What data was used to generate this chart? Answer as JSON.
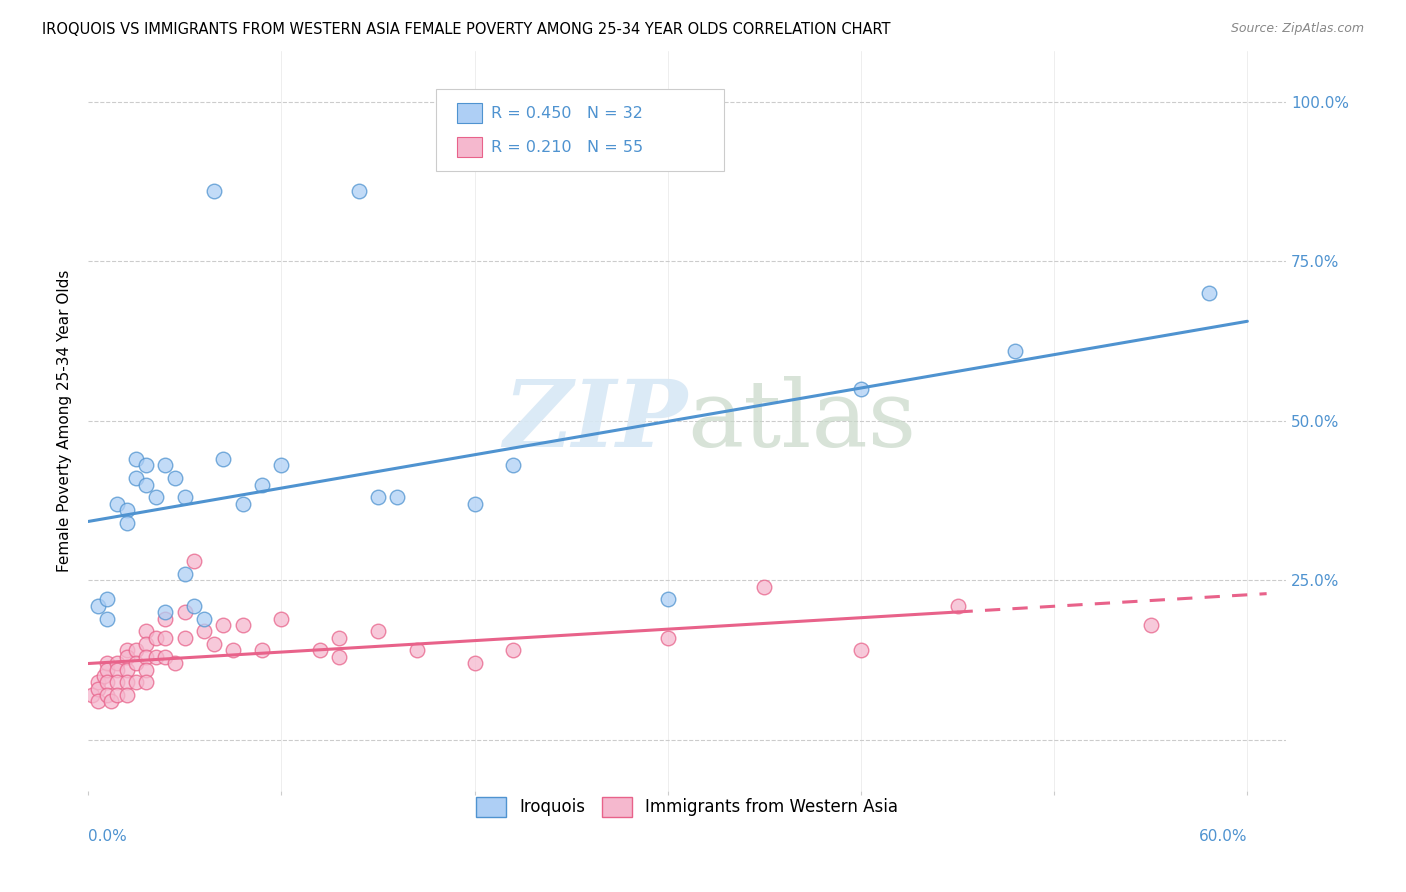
{
  "title": "IROQUOIS VS IMMIGRANTS FROM WESTERN ASIA FEMALE POVERTY AMONG 25-34 YEAR OLDS CORRELATION CHART",
  "source": "Source: ZipAtlas.com",
  "ylabel": "Female Poverty Among 25-34 Year Olds",
  "ytick_values": [
    0.0,
    0.25,
    0.5,
    0.75,
    1.0
  ],
  "ytick_labels": [
    "",
    "25.0%",
    "50.0%",
    "75.0%",
    "100.0%"
  ],
  "xlim": [
    0.0,
    0.62
  ],
  "ylim": [
    -0.08,
    1.08
  ],
  "legend1_label": "Iroquois",
  "legend2_label": "Immigrants from Western Asia",
  "R1": "0.450",
  "N1": "32",
  "R2": "0.210",
  "N2": "55",
  "color_blue": "#AECFF5",
  "color_pink": "#F5B8CE",
  "line_blue": "#4F93D0",
  "line_pink": "#E8628A",
  "iroquois_x": [
    0.005,
    0.01,
    0.01,
    0.015,
    0.02,
    0.02,
    0.025,
    0.025,
    0.03,
    0.03,
    0.035,
    0.04,
    0.04,
    0.045,
    0.05,
    0.05,
    0.055,
    0.06,
    0.065,
    0.07,
    0.08,
    0.09,
    0.1,
    0.14,
    0.15,
    0.16,
    0.2,
    0.22,
    0.3,
    0.4,
    0.48,
    0.58
  ],
  "iroquois_y": [
    0.21,
    0.22,
    0.19,
    0.37,
    0.36,
    0.34,
    0.44,
    0.41,
    0.43,
    0.4,
    0.38,
    0.43,
    0.2,
    0.41,
    0.38,
    0.26,
    0.21,
    0.19,
    0.86,
    0.44,
    0.37,
    0.4,
    0.43,
    0.86,
    0.38,
    0.38,
    0.37,
    0.43,
    0.22,
    0.55,
    0.61,
    0.7
  ],
  "western_asia_x": [
    0.002,
    0.005,
    0.005,
    0.005,
    0.008,
    0.01,
    0.01,
    0.01,
    0.01,
    0.012,
    0.015,
    0.015,
    0.015,
    0.015,
    0.02,
    0.02,
    0.02,
    0.02,
    0.02,
    0.025,
    0.025,
    0.025,
    0.03,
    0.03,
    0.03,
    0.03,
    0.03,
    0.035,
    0.035,
    0.04,
    0.04,
    0.04,
    0.045,
    0.05,
    0.05,
    0.055,
    0.06,
    0.065,
    0.07,
    0.075,
    0.08,
    0.09,
    0.1,
    0.12,
    0.13,
    0.13,
    0.15,
    0.17,
    0.2,
    0.22,
    0.3,
    0.35,
    0.4,
    0.45,
    0.55
  ],
  "western_asia_y": [
    0.07,
    0.09,
    0.08,
    0.06,
    0.1,
    0.12,
    0.11,
    0.09,
    0.07,
    0.06,
    0.12,
    0.11,
    0.09,
    0.07,
    0.14,
    0.13,
    0.11,
    0.09,
    0.07,
    0.14,
    0.12,
    0.09,
    0.17,
    0.15,
    0.13,
    0.11,
    0.09,
    0.16,
    0.13,
    0.19,
    0.16,
    0.13,
    0.12,
    0.2,
    0.16,
    0.28,
    0.17,
    0.15,
    0.18,
    0.14,
    0.18,
    0.14,
    0.19,
    0.14,
    0.16,
    0.13,
    0.17,
    0.14,
    0.12,
    0.14,
    0.16,
    0.24,
    0.14,
    0.21,
    0.18
  ],
  "background_color": "#FFFFFF",
  "watermark_zip": "ZIP",
  "watermark_atlas": "atlas",
  "grid_color": "#CCCCCC",
  "title_fontsize": 10.5,
  "axis_label_fontsize": 11,
  "tick_fontsize": 11
}
